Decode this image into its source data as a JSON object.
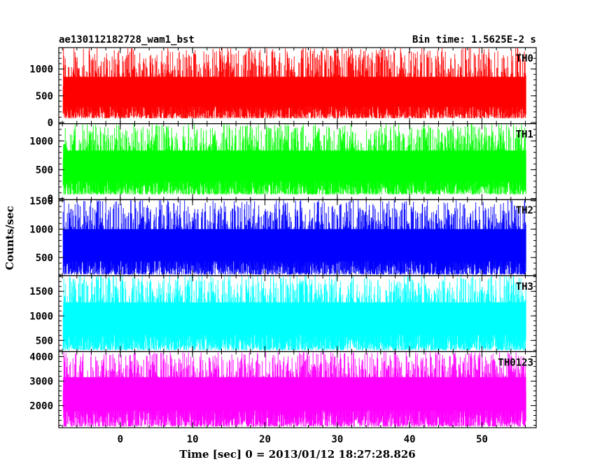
{
  "header": {
    "title": "ae130112182728_wam1_bst",
    "bin_time": "Bin time: 1.5625E-2 s"
  },
  "ylabel": "Counts/sec",
  "xlabel": "Time [sec] 0 = 2013/01/12 18:27:28.826",
  "chart_data": {
    "type": "line",
    "title": "ae130112182728_wam1_bst",
    "xlabel": "Time [sec] 0 = 2013/01/12 18:27:28.826",
    "ylabel": "Counts/sec",
    "xlim": [
      -8.5,
      57.5
    ],
    "data_x_range": [
      -7.9,
      56.1
    ],
    "x_ticks": [
      0,
      10,
      20,
      30,
      40,
      50
    ],
    "panels": [
      {
        "name": "TH0",
        "color": "#ff0000",
        "ylim": [
          -20,
          1400
        ],
        "y_ticks": [
          0,
          500,
          1000
        ],
        "low": 80,
        "mean": 560,
        "high": 1400
      },
      {
        "name": "TH1",
        "color": "#00ff00",
        "ylim": [
          -20,
          1300
        ],
        "y_ticks": [
          0,
          500,
          1000
        ],
        "low": 70,
        "mean": 580,
        "high": 1300
      },
      {
        "name": "TH2",
        "color": "#0000ff",
        "ylim": [
          180,
          1520
        ],
        "y_ticks": [
          500,
          1000,
          1500
        ],
        "low": 200,
        "mean": 720,
        "high": 1520
      },
      {
        "name": "TH3",
        "color": "#00ffff",
        "ylim": [
          270,
          1820
        ],
        "y_ticks": [
          500,
          1000,
          1500
        ],
        "low": 300,
        "mean": 980,
        "high": 1820
      },
      {
        "name": "TH0123",
        "color": "#ff00ff",
        "ylim": [
          1100,
          4200
        ],
        "y_ticks": [
          2000,
          3000,
          4000
        ],
        "low": 1150,
        "mean": 2600,
        "high": 4200
      }
    ]
  }
}
